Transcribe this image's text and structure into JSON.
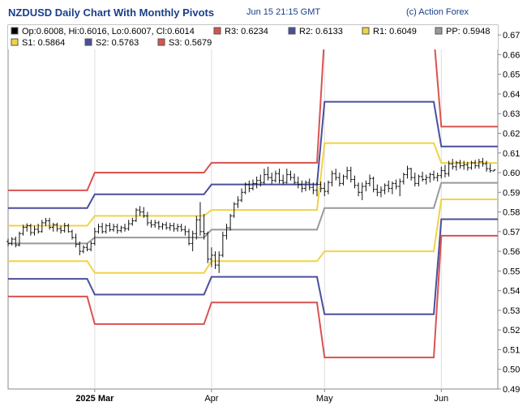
{
  "header": {
    "title": "NZDUSD Daily Chart With Monthly Pivots",
    "timestamp": "Jun 15 21:15 GMT",
    "credit": "(c) Action Forex"
  },
  "chart_data": {
    "type": "candlestick",
    "title": "NZDUSD Daily Chart With Monthly Pivots",
    "ohlc_label": "Op:0.6008, Hi:0.6016, Lo:0.6007, Cl:0.6014",
    "ylim": [
      0.49,
      0.675
    ],
    "y_ticks": [
      "0.49",
      "0.50",
      "0.51",
      "0.52",
      "0.53",
      "0.54",
      "0.55",
      "0.56",
      "0.57",
      "0.58",
      "0.59",
      "0.60",
      "0.61",
      "0.62",
      "0.63",
      "0.64",
      "0.65",
      "0.66",
      "0.67"
    ],
    "x_ticks": [
      {
        "label": "2025 Mar",
        "bold": true,
        "day": 71
      },
      {
        "label": "Apr",
        "bold": false,
        "day": 102
      },
      {
        "label": "May",
        "bold": false,
        "day": 132
      },
      {
        "label": "Jun",
        "bold": false,
        "day": 163
      }
    ],
    "x_range": [
      48,
      178
    ],
    "grid": true,
    "legend": [
      {
        "label": "R3: 0.6234",
        "color": "#d9534f"
      },
      {
        "label": "R2: 0.6133",
        "color": "#4a4f9c"
      },
      {
        "label": "R1: 0.6049",
        "color": "#f2d244"
      },
      {
        "label": "PP: 0.5948",
        "color": "#999999"
      },
      {
        "label": "S1: 0.5864",
        "color": "#f2d244"
      },
      {
        "label": "S2: 0.5763",
        "color": "#4a4f9c"
      },
      {
        "label": "S3: 0.5679",
        "color": "#d9534f"
      }
    ],
    "pivot_periods": [
      {
        "start": 48,
        "end": 69,
        "R3": 0.591,
        "R2": 0.582,
        "R1": 0.573,
        "PP": 0.564,
        "S1": 0.555,
        "S2": 0.546,
        "S3": 0.537
      },
      {
        "start": 71,
        "end": 100,
        "R3": 0.6,
        "R2": 0.589,
        "R1": 0.578,
        "PP": 0.567,
        "S1": 0.549,
        "S2": 0.538,
        "S3": 0.523
      },
      {
        "start": 102,
        "end": 130,
        "R3": 0.605,
        "R2": 0.594,
        "R1": 0.581,
        "PP": 0.571,
        "S1": 0.555,
        "S2": 0.547,
        "S3": 0.534
      },
      {
        "start": 132,
        "end": 161,
        "R3": 0.67,
        "R2": 0.636,
        "R1": 0.615,
        "PP": 0.582,
        "S1": 0.56,
        "S2": 0.528,
        "S3": 0.506
      },
      {
        "start": 163,
        "end": 178,
        "R3": 0.6234,
        "R2": 0.6133,
        "R1": 0.6049,
        "PP": 0.5948,
        "S1": 0.5864,
        "S2": 0.5763,
        "S3": 0.5679
      }
    ],
    "candles": [
      {
        "d": 48,
        "o": 0.565,
        "h": 0.5665,
        "l": 0.5625,
        "c": 0.564
      },
      {
        "d": 49,
        "o": 0.564,
        "h": 0.5672,
        "l": 0.563,
        "c": 0.5662
      },
      {
        "d": 50,
        "o": 0.5662,
        "h": 0.5675,
        "l": 0.562,
        "c": 0.5632
      },
      {
        "d": 51,
        "o": 0.5632,
        "h": 0.57,
        "l": 0.5625,
        "c": 0.569
      },
      {
        "d": 52,
        "o": 0.569,
        "h": 0.5735,
        "l": 0.568,
        "c": 0.5722
      },
      {
        "d": 53,
        "o": 0.5722,
        "h": 0.5742,
        "l": 0.57,
        "c": 0.573
      },
      {
        "d": 54,
        "o": 0.573,
        "h": 0.574,
        "l": 0.568,
        "c": 0.5695
      },
      {
        "d": 55,
        "o": 0.5695,
        "h": 0.573,
        "l": 0.568,
        "c": 0.5712
      },
      {
        "d": 56,
        "o": 0.5712,
        "h": 0.574,
        "l": 0.569,
        "c": 0.57
      },
      {
        "d": 57,
        "o": 0.57,
        "h": 0.576,
        "l": 0.5695,
        "c": 0.5745
      },
      {
        "d": 58,
        "o": 0.5745,
        "h": 0.577,
        "l": 0.5728,
        "c": 0.5755
      },
      {
        "d": 59,
        "o": 0.5755,
        "h": 0.577,
        "l": 0.571,
        "c": 0.5722
      },
      {
        "d": 60,
        "o": 0.5722,
        "h": 0.5745,
        "l": 0.57,
        "c": 0.5735
      },
      {
        "d": 61,
        "o": 0.5735,
        "h": 0.5745,
        "l": 0.57,
        "c": 0.5715
      },
      {
        "d": 62,
        "o": 0.5715,
        "h": 0.573,
        "l": 0.569,
        "c": 0.5705
      },
      {
        "d": 63,
        "o": 0.5705,
        "h": 0.5745,
        "l": 0.5695,
        "c": 0.573
      },
      {
        "d": 64,
        "o": 0.573,
        "h": 0.574,
        "l": 0.5695,
        "c": 0.57
      },
      {
        "d": 65,
        "o": 0.57,
        "h": 0.571,
        "l": 0.566,
        "c": 0.567
      },
      {
        "d": 66,
        "o": 0.567,
        "h": 0.569,
        "l": 0.562,
        "c": 0.5635
      },
      {
        "d": 67,
        "o": 0.5635,
        "h": 0.565,
        "l": 0.558,
        "c": 0.56
      },
      {
        "d": 68,
        "o": 0.56,
        "h": 0.563,
        "l": 0.559,
        "c": 0.562
      },
      {
        "d": 69,
        "o": 0.562,
        "h": 0.564,
        "l": 0.56,
        "c": 0.561
      },
      {
        "d": 70,
        "o": 0.561,
        "h": 0.565,
        "l": 0.56,
        "c": 0.564
      },
      {
        "d": 71,
        "o": 0.564,
        "h": 0.572,
        "l": 0.563,
        "c": 0.57
      },
      {
        "d": 72,
        "o": 0.57,
        "h": 0.574,
        "l": 0.569,
        "c": 0.5725
      },
      {
        "d": 73,
        "o": 0.5725,
        "h": 0.5745,
        "l": 0.569,
        "c": 0.57
      },
      {
        "d": 74,
        "o": 0.57,
        "h": 0.574,
        "l": 0.569,
        "c": 0.573
      },
      {
        "d": 75,
        "o": 0.573,
        "h": 0.5745,
        "l": 0.57,
        "c": 0.571
      },
      {
        "d": 76,
        "o": 0.571,
        "h": 0.574,
        "l": 0.57,
        "c": 0.5725
      },
      {
        "d": 77,
        "o": 0.5725,
        "h": 0.574,
        "l": 0.569,
        "c": 0.5705
      },
      {
        "d": 78,
        "o": 0.5705,
        "h": 0.573,
        "l": 0.5695,
        "c": 0.572
      },
      {
        "d": 79,
        "o": 0.572,
        "h": 0.574,
        "l": 0.57,
        "c": 0.5715
      },
      {
        "d": 80,
        "o": 0.5715,
        "h": 0.576,
        "l": 0.5705,
        "c": 0.574
      },
      {
        "d": 81,
        "o": 0.574,
        "h": 0.577,
        "l": 0.573,
        "c": 0.5755
      },
      {
        "d": 82,
        "o": 0.5755,
        "h": 0.582,
        "l": 0.575,
        "c": 0.581
      },
      {
        "d": 83,
        "o": 0.581,
        "h": 0.583,
        "l": 0.578,
        "c": 0.58
      },
      {
        "d": 84,
        "o": 0.58,
        "h": 0.5825,
        "l": 0.577,
        "c": 0.578
      },
      {
        "d": 85,
        "o": 0.578,
        "h": 0.58,
        "l": 0.573,
        "c": 0.5745
      },
      {
        "d": 86,
        "o": 0.5745,
        "h": 0.576,
        "l": 0.572,
        "c": 0.5735
      },
      {
        "d": 87,
        "o": 0.5735,
        "h": 0.576,
        "l": 0.572,
        "c": 0.5745
      },
      {
        "d": 88,
        "o": 0.5745,
        "h": 0.5755,
        "l": 0.571,
        "c": 0.5725
      },
      {
        "d": 89,
        "o": 0.5725,
        "h": 0.5745,
        "l": 0.571,
        "c": 0.5735
      },
      {
        "d": 90,
        "o": 0.5735,
        "h": 0.575,
        "l": 0.571,
        "c": 0.572
      },
      {
        "d": 91,
        "o": 0.572,
        "h": 0.5745,
        "l": 0.5705,
        "c": 0.573
      },
      {
        "d": 92,
        "o": 0.573,
        "h": 0.5745,
        "l": 0.57,
        "c": 0.5715
      },
      {
        "d": 93,
        "o": 0.5715,
        "h": 0.574,
        "l": 0.57,
        "c": 0.5725
      },
      {
        "d": 94,
        "o": 0.5725,
        "h": 0.574,
        "l": 0.57,
        "c": 0.571
      },
      {
        "d": 95,
        "o": 0.571,
        "h": 0.573,
        "l": 0.568,
        "c": 0.57
      },
      {
        "d": 96,
        "o": 0.57,
        "h": 0.5715,
        "l": 0.563,
        "c": 0.564
      },
      {
        "d": 97,
        "o": 0.564,
        "h": 0.5705,
        "l": 0.56,
        "c": 0.569
      },
      {
        "d": 98,
        "o": 0.569,
        "h": 0.578,
        "l": 0.566,
        "c": 0.576
      },
      {
        "d": 99,
        "o": 0.576,
        "h": 0.585,
        "l": 0.568,
        "c": 0.57
      },
      {
        "d": 100,
        "o": 0.57,
        "h": 0.579,
        "l": 0.566,
        "c": 0.569
      },
      {
        "d": 101,
        "o": 0.569,
        "h": 0.57,
        "l": 0.554,
        "c": 0.556
      },
      {
        "d": 102,
        "o": 0.556,
        "h": 0.562,
        "l": 0.552,
        "c": 0.558
      },
      {
        "d": 103,
        "o": 0.558,
        "h": 0.56,
        "l": 0.551,
        "c": 0.553
      },
      {
        "d": 104,
        "o": 0.553,
        "h": 0.56,
        "l": 0.549,
        "c": 0.558
      },
      {
        "d": 105,
        "o": 0.558,
        "h": 0.57,
        "l": 0.557,
        "c": 0.568
      },
      {
        "d": 106,
        "o": 0.568,
        "h": 0.574,
        "l": 0.566,
        "c": 0.572
      },
      {
        "d": 107,
        "o": 0.572,
        "h": 0.579,
        "l": 0.5705,
        "c": 0.578
      },
      {
        "d": 108,
        "o": 0.578,
        "h": 0.585,
        "l": 0.577,
        "c": 0.584
      },
      {
        "d": 109,
        "o": 0.584,
        "h": 0.588,
        "l": 0.582,
        "c": 0.586
      },
      {
        "d": 110,
        "o": 0.586,
        "h": 0.592,
        "l": 0.585,
        "c": 0.59
      },
      {
        "d": 111,
        "o": 0.59,
        "h": 0.595,
        "l": 0.589,
        "c": 0.594
      },
      {
        "d": 112,
        "o": 0.594,
        "h": 0.596,
        "l": 0.59,
        "c": 0.592
      },
      {
        "d": 113,
        "o": 0.592,
        "h": 0.5965,
        "l": 0.591,
        "c": 0.5945
      },
      {
        "d": 114,
        "o": 0.5945,
        "h": 0.598,
        "l": 0.592,
        "c": 0.596
      },
      {
        "d": 115,
        "o": 0.596,
        "h": 0.599,
        "l": 0.593,
        "c": 0.595
      },
      {
        "d": 116,
        "o": 0.595,
        "h": 0.602,
        "l": 0.594,
        "c": 0.599
      },
      {
        "d": 117,
        "o": 0.599,
        "h": 0.603,
        "l": 0.596,
        "c": 0.5975
      },
      {
        "d": 118,
        "o": 0.5975,
        "h": 0.6,
        "l": 0.594,
        "c": 0.596
      },
      {
        "d": 119,
        "o": 0.596,
        "h": 0.601,
        "l": 0.595,
        "c": 0.5995
      },
      {
        "d": 120,
        "o": 0.5995,
        "h": 0.602,
        "l": 0.5945,
        "c": 0.596
      },
      {
        "d": 121,
        "o": 0.596,
        "h": 0.599,
        "l": 0.594,
        "c": 0.595
      },
      {
        "d": 122,
        "o": 0.595,
        "h": 0.602,
        "l": 0.5945,
        "c": 0.599
      },
      {
        "d": 123,
        "o": 0.599,
        "h": 0.601,
        "l": 0.596,
        "c": 0.5975
      },
      {
        "d": 124,
        "o": 0.5975,
        "h": 0.5995,
        "l": 0.594,
        "c": 0.595
      },
      {
        "d": 125,
        "o": 0.595,
        "h": 0.598,
        "l": 0.592,
        "c": 0.594
      },
      {
        "d": 126,
        "o": 0.594,
        "h": 0.596,
        "l": 0.59,
        "c": 0.592
      },
      {
        "d": 127,
        "o": 0.592,
        "h": 0.596,
        "l": 0.5905,
        "c": 0.595
      },
      {
        "d": 128,
        "o": 0.595,
        "h": 0.597,
        "l": 0.591,
        "c": 0.5925
      },
      {
        "d": 129,
        "o": 0.5925,
        "h": 0.595,
        "l": 0.589,
        "c": 0.591
      },
      {
        "d": 130,
        "o": 0.591,
        "h": 0.595,
        "l": 0.588,
        "c": 0.594
      },
      {
        "d": 131,
        "o": 0.594,
        "h": 0.5955,
        "l": 0.59,
        "c": 0.592
      },
      {
        "d": 132,
        "o": 0.592,
        "h": 0.595,
        "l": 0.588,
        "c": 0.5905
      },
      {
        "d": 133,
        "o": 0.5905,
        "h": 0.596,
        "l": 0.589,
        "c": 0.595
      },
      {
        "d": 134,
        "o": 0.595,
        "h": 0.601,
        "l": 0.593,
        "c": 0.5995
      },
      {
        "d": 135,
        "o": 0.5995,
        "h": 0.602,
        "l": 0.596,
        "c": 0.5975
      },
      {
        "d": 136,
        "o": 0.5975,
        "h": 0.6,
        "l": 0.593,
        "c": 0.5945
      },
      {
        "d": 137,
        "o": 0.5945,
        "h": 0.599,
        "l": 0.5935,
        "c": 0.598
      },
      {
        "d": 138,
        "o": 0.598,
        "h": 0.603,
        "l": 0.5965,
        "c": 0.601
      },
      {
        "d": 139,
        "o": 0.601,
        "h": 0.603,
        "l": 0.595,
        "c": 0.5965
      },
      {
        "d": 140,
        "o": 0.5965,
        "h": 0.5985,
        "l": 0.592,
        "c": 0.5935
      },
      {
        "d": 141,
        "o": 0.5935,
        "h": 0.595,
        "l": 0.588,
        "c": 0.59
      },
      {
        "d": 142,
        "o": 0.59,
        "h": 0.595,
        "l": 0.586,
        "c": 0.593
      },
      {
        "d": 143,
        "o": 0.593,
        "h": 0.596,
        "l": 0.5905,
        "c": 0.5945
      },
      {
        "d": 144,
        "o": 0.5945,
        "h": 0.599,
        "l": 0.593,
        "c": 0.597
      },
      {
        "d": 145,
        "o": 0.597,
        "h": 0.598,
        "l": 0.59,
        "c": 0.5915
      },
      {
        "d": 146,
        "o": 0.5915,
        "h": 0.594,
        "l": 0.588,
        "c": 0.59
      },
      {
        "d": 147,
        "o": 0.59,
        "h": 0.593,
        "l": 0.5875,
        "c": 0.591
      },
      {
        "d": 148,
        "o": 0.591,
        "h": 0.5945,
        "l": 0.589,
        "c": 0.5935
      },
      {
        "d": 149,
        "o": 0.5935,
        "h": 0.596,
        "l": 0.59,
        "c": 0.592
      },
      {
        "d": 150,
        "o": 0.592,
        "h": 0.5955,
        "l": 0.589,
        "c": 0.5945
      },
      {
        "d": 151,
        "o": 0.5945,
        "h": 0.5965,
        "l": 0.5915,
        "c": 0.593
      },
      {
        "d": 152,
        "o": 0.593,
        "h": 0.597,
        "l": 0.588,
        "c": 0.5955
      },
      {
        "d": 153,
        "o": 0.5955,
        "h": 0.6,
        "l": 0.594,
        "c": 0.599
      },
      {
        "d": 154,
        "o": 0.599,
        "h": 0.6035,
        "l": 0.597,
        "c": 0.602
      },
      {
        "d": 155,
        "o": 0.602,
        "h": 0.6025,
        "l": 0.596,
        "c": 0.5975
      },
      {
        "d": 156,
        "o": 0.5975,
        "h": 0.6,
        "l": 0.593,
        "c": 0.5945
      },
      {
        "d": 157,
        "o": 0.5945,
        "h": 0.599,
        "l": 0.593,
        "c": 0.598
      },
      {
        "d": 158,
        "o": 0.598,
        "h": 0.6005,
        "l": 0.5955,
        "c": 0.5965
      },
      {
        "d": 159,
        "o": 0.5965,
        "h": 0.599,
        "l": 0.594,
        "c": 0.5975
      },
      {
        "d": 160,
        "o": 0.5975,
        "h": 0.6,
        "l": 0.595,
        "c": 0.599
      },
      {
        "d": 161,
        "o": 0.599,
        "h": 0.601,
        "l": 0.596,
        "c": 0.5975
      },
      {
        "d": 162,
        "o": 0.5975,
        "h": 0.6,
        "l": 0.5955,
        "c": 0.5985
      },
      {
        "d": 163,
        "o": 0.5985,
        "h": 0.603,
        "l": 0.597,
        "c": 0.601
      },
      {
        "d": 164,
        "o": 0.601,
        "h": 0.604,
        "l": 0.5975,
        "c": 0.5995
      },
      {
        "d": 165,
        "o": 0.5995,
        "h": 0.606,
        "l": 0.598,
        "c": 0.6045
      },
      {
        "d": 166,
        "o": 0.6045,
        "h": 0.607,
        "l": 0.6015,
        "c": 0.603
      },
      {
        "d": 167,
        "o": 0.603,
        "h": 0.606,
        "l": 0.601,
        "c": 0.605
      },
      {
        "d": 168,
        "o": 0.605,
        "h": 0.6065,
        "l": 0.602,
        "c": 0.6035
      },
      {
        "d": 169,
        "o": 0.6035,
        "h": 0.606,
        "l": 0.6015,
        "c": 0.604
      },
      {
        "d": 170,
        "o": 0.604,
        "h": 0.6055,
        "l": 0.601,
        "c": 0.6025
      },
      {
        "d": 171,
        "o": 0.6025,
        "h": 0.606,
        "l": 0.6015,
        "c": 0.605
      },
      {
        "d": 172,
        "o": 0.605,
        "h": 0.6065,
        "l": 0.602,
        "c": 0.6035
      },
      {
        "d": 173,
        "o": 0.6035,
        "h": 0.607,
        "l": 0.602,
        "c": 0.6055
      },
      {
        "d": 174,
        "o": 0.6055,
        "h": 0.6075,
        "l": 0.603,
        "c": 0.6045
      },
      {
        "d": 175,
        "o": 0.6045,
        "h": 0.606,
        "l": 0.6005,
        "c": 0.602
      },
      {
        "d": 176,
        "o": 0.602,
        "h": 0.6045,
        "l": 0.6,
        "c": 0.601
      },
      {
        "d": 177,
        "o": 0.6008,
        "h": 0.6016,
        "l": 0.6007,
        "c": 0.6014
      }
    ]
  }
}
